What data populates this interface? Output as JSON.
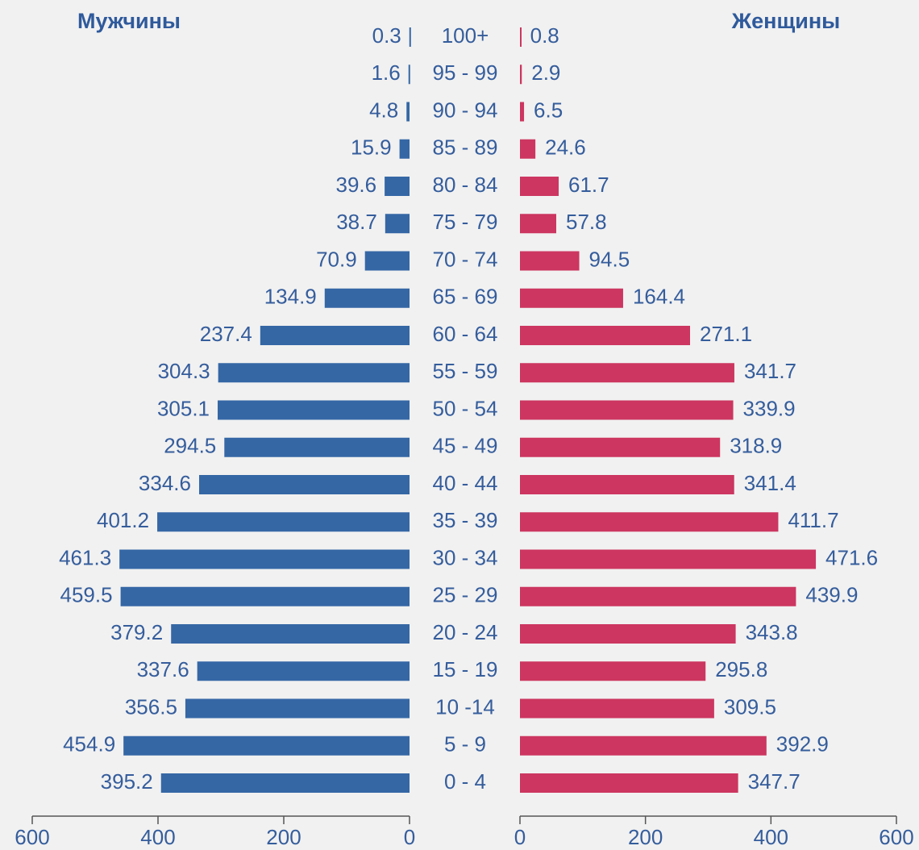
{
  "chart_data": {
    "type": "pyramid",
    "categories": [
      "0 - 4",
      "5 - 9",
      "10 -14",
      "15 - 19",
      "20 - 24",
      "25 - 29",
      "30 - 34",
      "35 - 39",
      "40 - 44",
      "45 - 49",
      "50 - 54",
      "55 - 59",
      "60 - 64",
      "65 - 69",
      "70 - 74",
      "75 - 79",
      "80 - 84",
      "85 - 89",
      "90 - 94",
      "95 - 99",
      "100+"
    ],
    "series": [
      {
        "name": "Мужчины",
        "color": "#3567a5",
        "side": "left",
        "values": [
          395.2,
          454.9,
          356.5,
          337.6,
          379.2,
          459.5,
          461.3,
          401.2,
          334.6,
          294.5,
          305.1,
          304.3,
          237.4,
          134.9,
          70.9,
          38.7,
          39.6,
          15.9,
          4.8,
          1.6,
          0.3
        ]
      },
      {
        "name": "Женщины",
        "color": "#cc3660",
        "side": "right",
        "values": [
          347.7,
          392.9,
          309.5,
          295.8,
          343.8,
          439.9,
          471.6,
          411.7,
          341.4,
          318.9,
          339.9,
          341.7,
          271.1,
          164.4,
          94.5,
          57.8,
          61.7,
          24.6,
          6.5,
          2.9,
          0.8
        ]
      }
    ],
    "xlim": [
      0,
      600
    ],
    "xticks": [
      0,
      200,
      400,
      600
    ]
  }
}
